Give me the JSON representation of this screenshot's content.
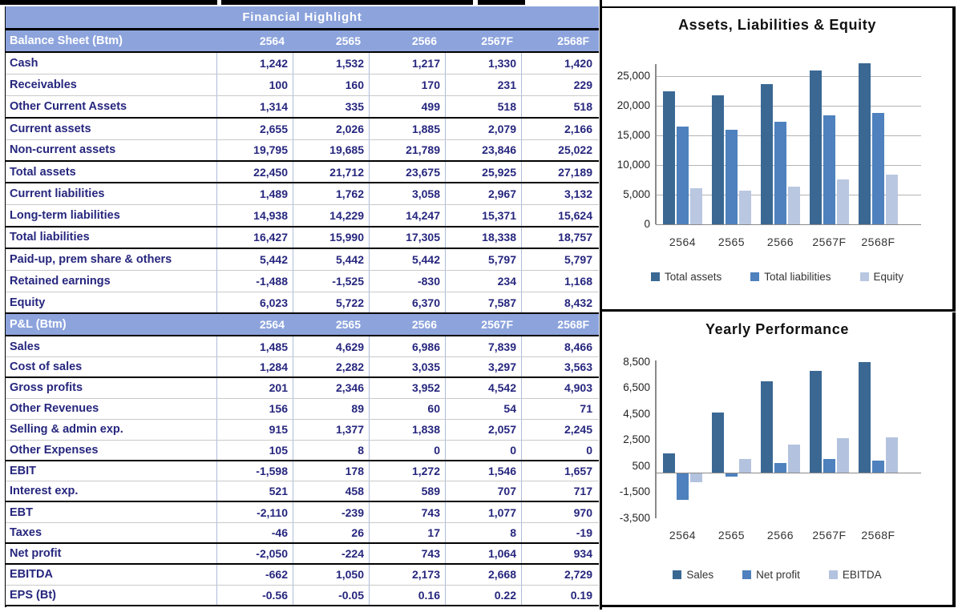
{
  "table": {
    "title": "Financial Highlight",
    "columns": [
      "2564",
      "2565",
      "2566",
      "2567F",
      "2568F"
    ],
    "sections": [
      {
        "header": "Balance Sheet (Btm)",
        "rows": [
          {
            "label": "Cash",
            "values": [
              "1,242",
              "1,532",
              "1,217",
              "1,330",
              "1,420"
            ],
            "thick": false
          },
          {
            "label": "Receivables",
            "values": [
              "100",
              "160",
              "170",
              "231",
              "229"
            ],
            "thick": false
          },
          {
            "label": "Other Current Assets",
            "values": [
              "1,314",
              "335",
              "499",
              "518",
              "518"
            ],
            "thick": true
          },
          {
            "label": "Current assets",
            "values": [
              "2,655",
              "2,026",
              "1,885",
              "2,079",
              "2,166"
            ],
            "thick": false
          },
          {
            "label": "Non-current assets",
            "values": [
              "19,795",
              "19,685",
              "21,789",
              "23,846",
              "25,022"
            ],
            "thick": true
          },
          {
            "label": "Total assets",
            "values": [
              "22,450",
              "21,712",
              "23,675",
              "25,925",
              "27,189"
            ],
            "thick": true
          },
          {
            "label": "Current liabilities",
            "values": [
              "1,489",
              "1,762",
              "3,058",
              "2,967",
              "3,132"
            ],
            "thick": false
          },
          {
            "label": "Long-term liabilities",
            "values": [
              "14,938",
              "14,229",
              "14,247",
              "15,371",
              "15,624"
            ],
            "thick": true
          },
          {
            "label": "Total liabilities",
            "values": [
              "16,427",
              "15,990",
              "17,305",
              "18,338",
              "18,757"
            ],
            "thick": true
          },
          {
            "label": "Paid-up, prem share & others",
            "values": [
              "5,442",
              "5,442",
              "5,442",
              "5,797",
              "5,797"
            ],
            "thick": false
          },
          {
            "label": "Retained earnings",
            "values": [
              "-1,488",
              "-1,525",
              "-830",
              "234",
              "1,168"
            ],
            "thick": false
          },
          {
            "label": "Equity",
            "values": [
              "6,023",
              "5,722",
              "6,370",
              "7,587",
              "8,432"
            ],
            "thick": true
          }
        ]
      },
      {
        "header": "P&L (Btm)",
        "rows": [
          {
            "label": "Sales",
            "values": [
              "1,485",
              "4,629",
              "6,986",
              "7,839",
              "8,466"
            ],
            "thick": false
          },
          {
            "label": "Cost of sales",
            "values": [
              "1,284",
              "2,282",
              "3,035",
              "3,297",
              "3,563"
            ],
            "thick": true
          },
          {
            "label": "Gross profits",
            "values": [
              "201",
              "2,346",
              "3,952",
              "4,542",
              "4,903"
            ],
            "thick": false
          },
          {
            "label": "Other Revenues",
            "values": [
              "156",
              "89",
              "60",
              "54",
              "71"
            ],
            "thick": false
          },
          {
            "label": "Selling & admin exp.",
            "values": [
              "915",
              "1,377",
              "1,838",
              "2,057",
              "2,245"
            ],
            "thick": false
          },
          {
            "label": "Other Expenses",
            "values": [
              "105",
              "8",
              "0",
              "0",
              "0"
            ],
            "thick": true
          },
          {
            "label": "EBIT",
            "values": [
              "-1,598",
              "178",
              "1,272",
              "1,546",
              "1,657"
            ],
            "thick": false
          },
          {
            "label": "Interest exp.",
            "values": [
              "521",
              "458",
              "589",
              "707",
              "717"
            ],
            "thick": true
          },
          {
            "label": "EBT",
            "values": [
              "-2,110",
              "-239",
              "743",
              "1,077",
              "970"
            ],
            "thick": false
          },
          {
            "label": "Taxes",
            "values": [
              "-46",
              "26",
              "17",
              "8",
              "-19"
            ],
            "thick": true
          },
          {
            "label": "Net profit",
            "values": [
              "-2,050",
              "-224",
              "743",
              "1,064",
              "934"
            ],
            "thick": true
          },
          {
            "label": "EBITDA",
            "values": [
              "-662",
              "1,050",
              "2,173",
              "2,668",
              "2,729"
            ],
            "thick": false
          },
          {
            "label": "EPS (Bt)",
            "values": [
              "-0.56",
              "-0.05",
              "0.16",
              "0.22",
              "0.19"
            ],
            "thick": true
          }
        ]
      }
    ]
  },
  "chart_data": [
    {
      "type": "bar",
      "title": "Assets, Liabilities & Equity",
      "categories": [
        "2564",
        "2565",
        "2566",
        "2567F",
        "2568F"
      ],
      "series": [
        {
          "name": "Total assets",
          "color": "#3A6893",
          "values": [
            22450,
            21712,
            23675,
            25925,
            27189
          ]
        },
        {
          "name": "Total liabilities",
          "color": "#4E81BD",
          "values": [
            16427,
            15990,
            17305,
            18338,
            18757
          ]
        },
        {
          "name": "Equity",
          "color": "#B9C7E1",
          "values": [
            6023,
            5722,
            6370,
            7587,
            8432
          ]
        }
      ],
      "ylim": [
        0,
        28100
      ],
      "yticks": [
        25000,
        20000,
        15000,
        10000,
        5000,
        0
      ],
      "grid": true,
      "legend_position": "bottom"
    },
    {
      "type": "bar",
      "title": "Yearly Performance",
      "categories": [
        "2564",
        "2565",
        "2566",
        "2567F",
        "2568F"
      ],
      "series": [
        {
          "name": "Sales",
          "color": "#3A6893",
          "values": [
            1485,
            4629,
            6986,
            7839,
            8466
          ]
        },
        {
          "name": "Net profit",
          "color": "#4E81BD",
          "values": [
            -2050,
            -224,
            743,
            1064,
            934
          ]
        },
        {
          "name": "EBITDA",
          "color": "#B3C3DF",
          "values": [
            -662,
            1050,
            2173,
            2668,
            2729
          ]
        }
      ],
      "ylim": [
        -3500,
        8500
      ],
      "yticks": [
        8500,
        6500,
        4500,
        2500,
        500,
        -1500,
        -3500
      ],
      "grid": false,
      "legend_position": "bottom"
    }
  ],
  "palette": {
    "header_blue": "#8CA3DC",
    "table_text_navy": "#26267E",
    "column_line": "#AEBDDA",
    "series_dark_blue": "#3A6893",
    "series_medium_blue": "#4E81BD",
    "series_light_blue": "#B9C7E1"
  }
}
